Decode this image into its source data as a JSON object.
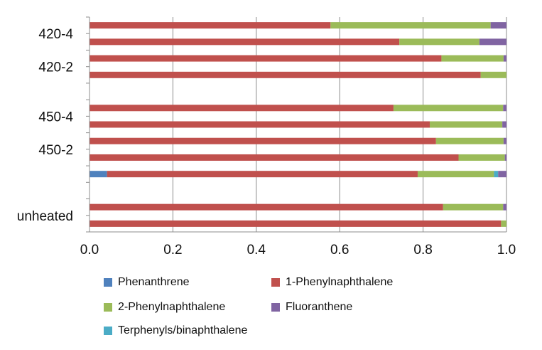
{
  "chart_data": {
    "type": "bar",
    "orientation": "horizontal",
    "stacked": true,
    "title": "",
    "xlabel": "",
    "ylabel": "",
    "xlim": [
      0,
      1
    ],
    "xticks": [
      "0.0",
      "0.2",
      "0.4",
      "0.6",
      "0.8",
      "1.0"
    ],
    "grid": "vertical",
    "legend_position": "bottom",
    "category_labels": [
      "420-4",
      "420-2",
      "450-4",
      "450-2",
      "unheated"
    ],
    "rows": [
      {
        "slot": 0,
        "values": [
          0.0,
          0.578,
          0.384,
          0.0,
          0.038
        ]
      },
      {
        "slot": 1,
        "values": [
          0.0,
          0.743,
          0.192,
          0.0,
          0.065
        ]
      },
      {
        "slot": 2,
        "values": [
          0.0,
          0.844,
          0.149,
          0.0,
          0.007
        ]
      },
      {
        "slot": 3,
        "values": [
          0.0,
          0.938,
          0.062,
          0.0,
          0.0
        ]
      },
      {
        "slot": 5,
        "values": [
          0.0,
          0.729,
          0.263,
          0.0,
          0.008
        ]
      },
      {
        "slot": 6,
        "values": [
          0.0,
          0.816,
          0.174,
          0.0,
          0.01
        ]
      },
      {
        "slot": 7,
        "values": [
          0.0,
          0.831,
          0.162,
          0.0,
          0.007
        ]
      },
      {
        "slot": 8,
        "values": [
          0.0,
          0.885,
          0.111,
          0.0,
          0.004
        ]
      },
      {
        "slot": 9,
        "values": [
          0.042,
          0.745,
          0.183,
          0.01,
          0.02
        ]
      },
      {
        "slot": 11,
        "values": [
          0.0,
          0.848,
          0.144,
          0.0,
          0.008
        ]
      },
      {
        "slot": 12,
        "values": [
          0.0,
          0.987,
          0.013,
          0.0,
          0.0
        ]
      }
    ],
    "series": [
      {
        "name": "Phenanthrene",
        "color": "#4f81bd"
      },
      {
        "name": "1-Phenylnaphthalene",
        "color": "#c0504d"
      },
      {
        "name": "2-Phenylnaphthalene",
        "color": "#9bbb59"
      },
      {
        "name": "Terphenyls/binaphthalene",
        "color": "#4bacc6"
      },
      {
        "name": "Fluoranthene",
        "color": "#8064a2"
      }
    ]
  }
}
